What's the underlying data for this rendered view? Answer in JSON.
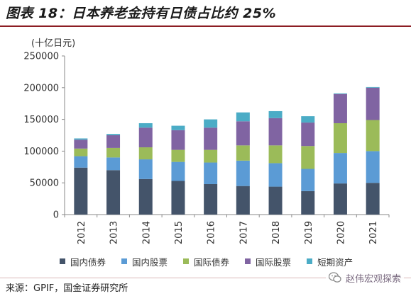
{
  "header": {
    "title": "图表 18：日本养老金持有日债占比约 25%"
  },
  "chart_data": {
    "type": "bar",
    "stacked": true,
    "unit_label": "(十亿日元)",
    "categories": [
      "2012",
      "2013",
      "2014",
      "2015",
      "2016",
      "2017",
      "2018",
      "2019",
      "2020",
      "2021"
    ],
    "ylim": [
      0,
      250000
    ],
    "yticks": [
      0,
      50000,
      100000,
      150000,
      200000,
      250000
    ],
    "ytick_labels": [
      "0",
      "50000",
      "100000",
      "150000",
      "200000",
      "250000"
    ],
    "legend_position": "bottom",
    "grid": false,
    "series": [
      {
        "name": "国内债券",
        "color": "#44546a",
        "values": [
          74000,
          70000,
          56000,
          53000,
          48000,
          45000,
          44000,
          37000,
          49000,
          50000
        ]
      },
      {
        "name": "国内股票",
        "color": "#5b9bd5",
        "values": [
          18000,
          20000,
          31000,
          30000,
          34000,
          40000,
          37000,
          35000,
          48000,
          50000
        ]
      },
      {
        "name": "国际债券",
        "color": "#9bbb59",
        "values": [
          12000,
          15000,
          19000,
          19000,
          20000,
          24000,
          28000,
          36000,
          47000,
          49000
        ]
      },
      {
        "name": "国际股票",
        "color": "#8064a2",
        "values": [
          14000,
          20000,
          31000,
          31000,
          35000,
          38000,
          43000,
          37000,
          46000,
          51000
        ]
      },
      {
        "name": "短期资产",
        "color": "#4bacc6",
        "values": [
          2000,
          2000,
          7000,
          7000,
          13000,
          14000,
          11000,
          10000,
          1000,
          1000
        ]
      }
    ]
  },
  "footer": {
    "source": "来源：GPIF，国金证券研究所",
    "watermark": "赵伟宏观探索"
  }
}
